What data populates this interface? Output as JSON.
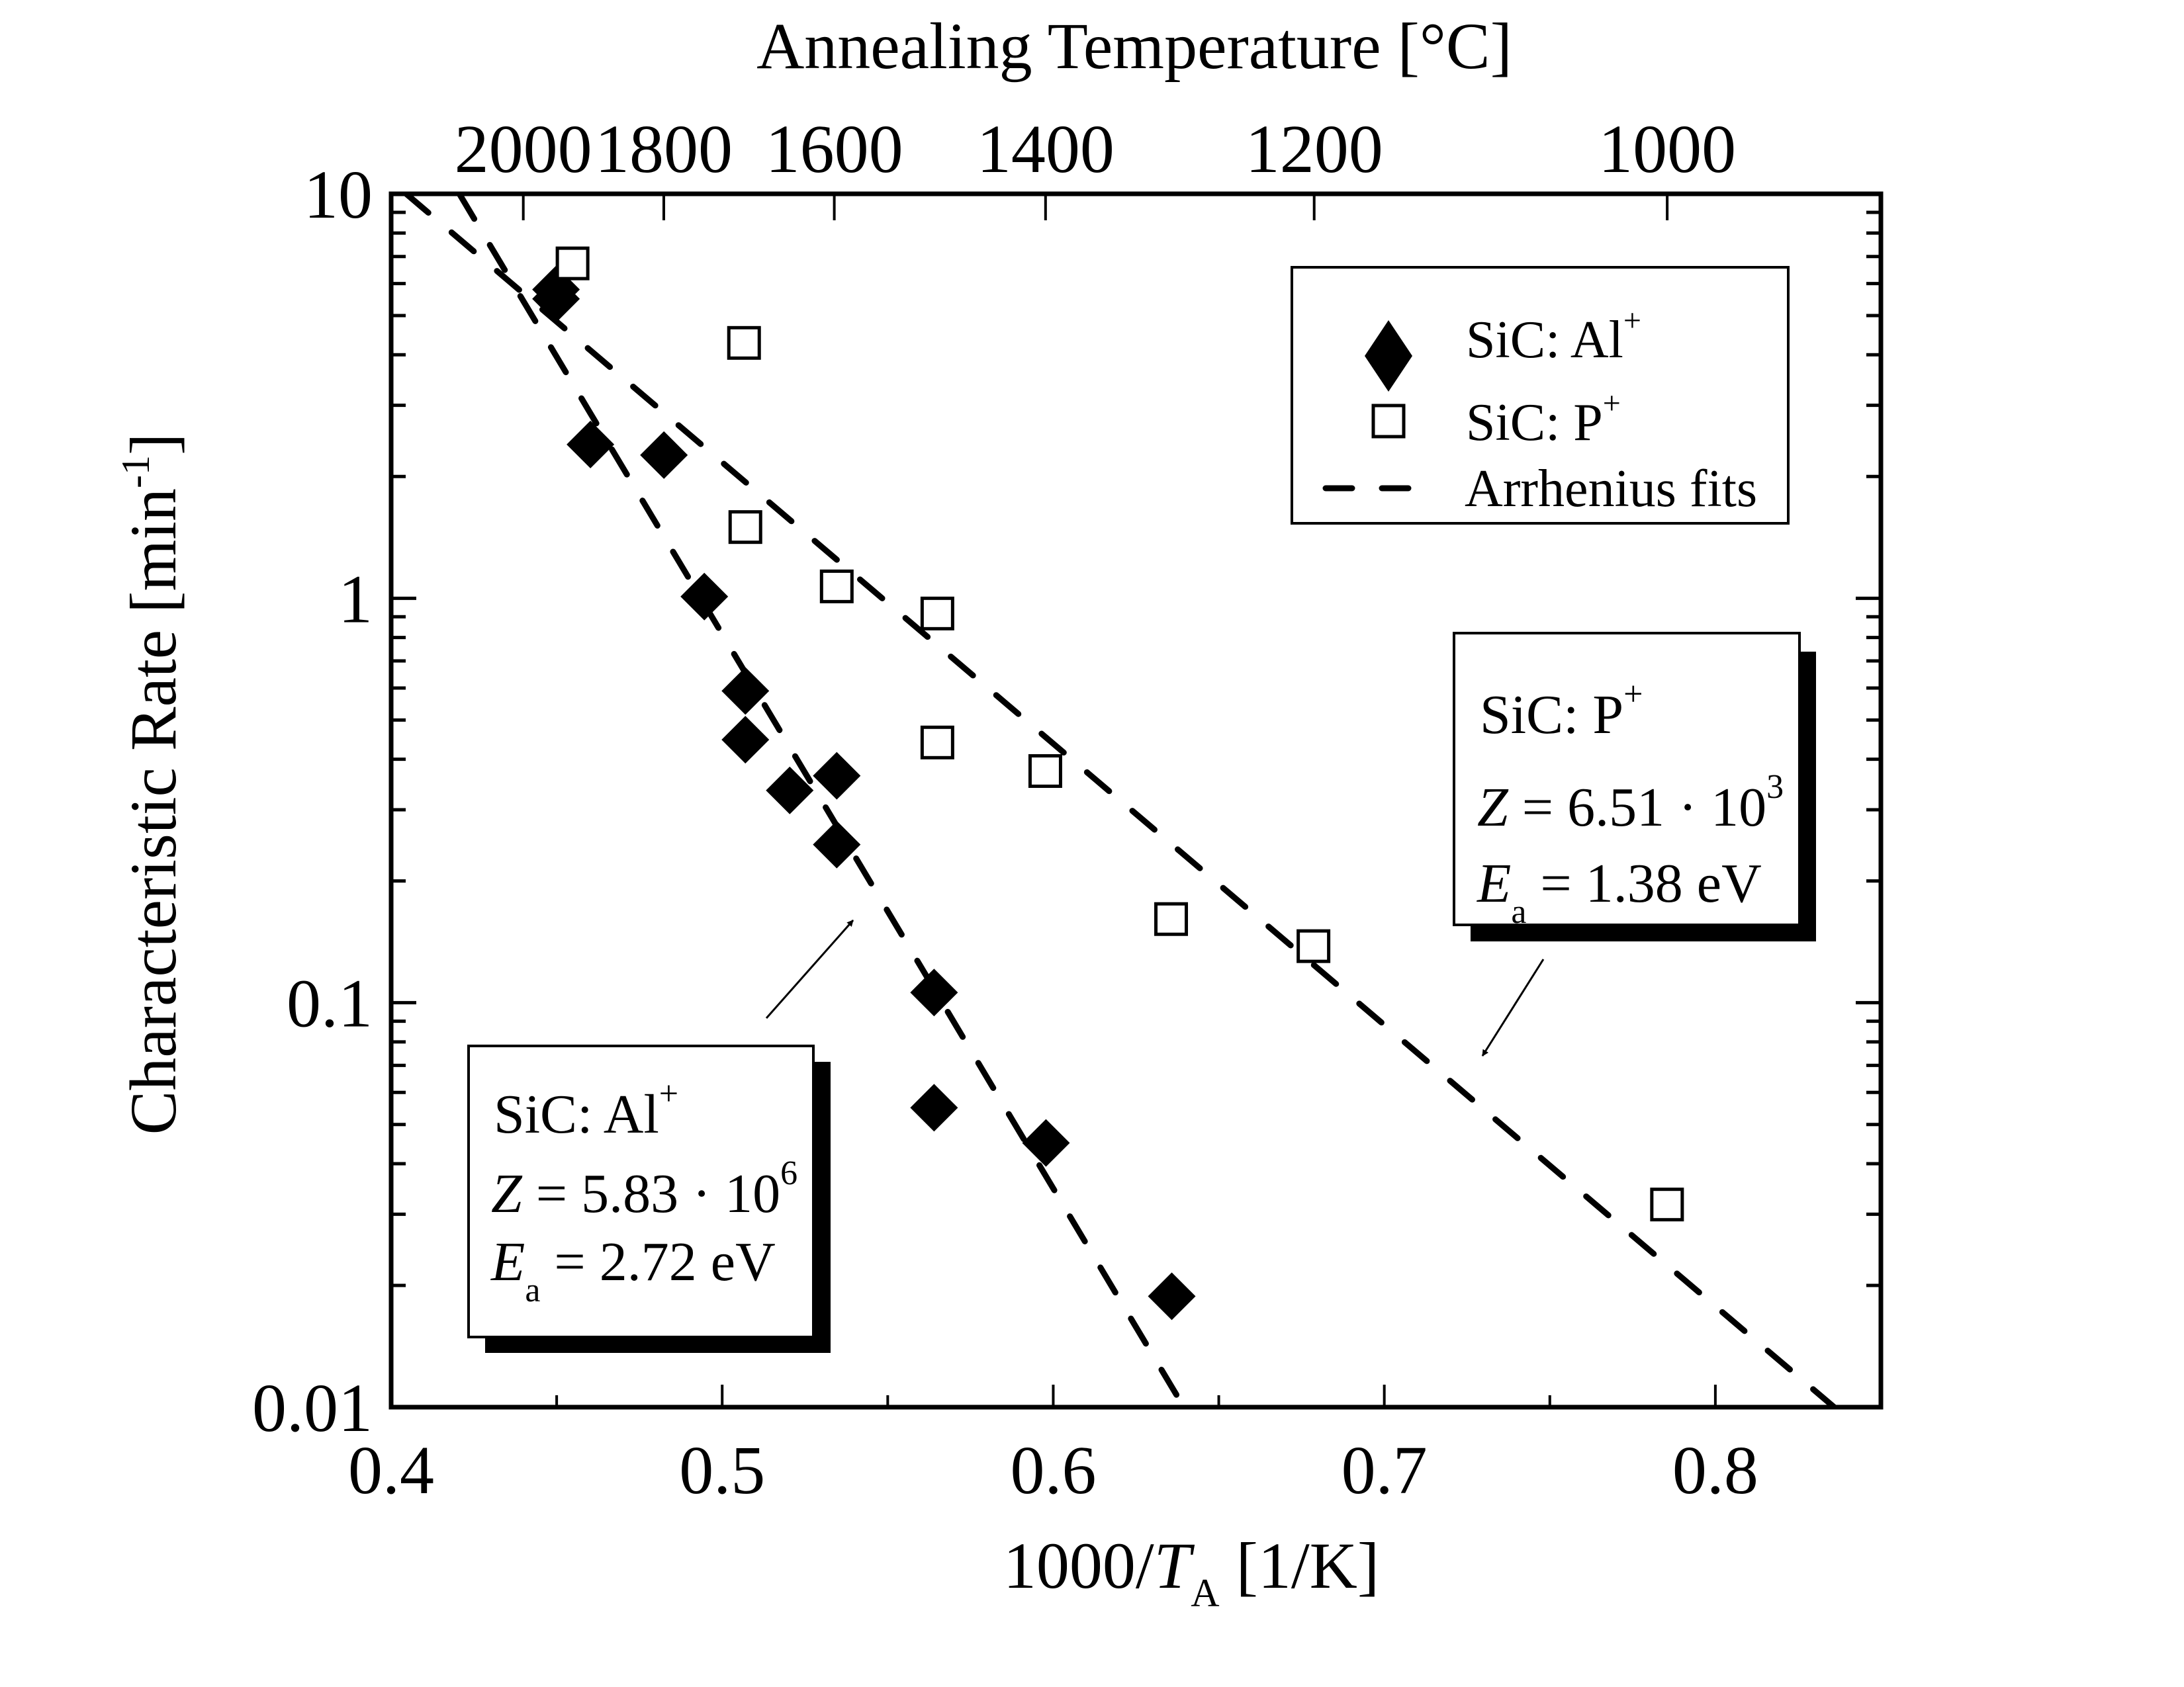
{
  "chart_data": {
    "type": "scatter",
    "title": "",
    "xlabel": {
      "main": "1000/",
      "italic": "T",
      "sub": "A",
      "unit": " [1/K]"
    },
    "ylabel": {
      "main": "Characteristic Rate [min",
      "sup": "-1",
      "close": "]"
    },
    "top_xlabel": "Annealing Temperature [°C]",
    "x_scale": "linear",
    "y_scale": "log",
    "xlim": [
      0.4,
      0.85
    ],
    "ylim": [
      0.01,
      10
    ],
    "x_ticks": [
      0.4,
      0.5,
      0.6,
      0.7,
      0.8
    ],
    "x_tick_labels": [
      "0.4",
      "0.5",
      "0.6",
      "0.7",
      "0.8"
    ],
    "x_minor_ticks": [
      0.45,
      0.55,
      0.65,
      0.75
    ],
    "y_ticks": [
      0.01,
      0.1,
      1,
      10
    ],
    "y_tick_labels": [
      "0.01",
      "0.1",
      "1",
      "10"
    ],
    "top_ticks_celsius": [
      2000,
      1800,
      1600,
      1400,
      1200,
      1000
    ],
    "top_tick_labels": [
      "2000",
      "1800",
      "1600",
      "1400",
      "1200",
      "1000"
    ],
    "grid": false,
    "legend_position": "top-right",
    "series": [
      {
        "name": "SiC: Al",
        "name_sup": "+",
        "marker": "filled-diamond",
        "color": "#000000",
        "x": [
          0.4498,
          0.4498,
          0.4602,
          0.4824,
          0.4946,
          0.507,
          0.507,
          0.5204,
          0.5346,
          0.5346,
          0.564,
          0.564,
          0.5978,
          0.6358
        ],
        "y": [
          5.8,
          5.5,
          2.4,
          2.26,
          1.01,
          0.59,
          0.447,
          0.335,
          0.364,
          0.246,
          0.106,
          0.055,
          0.045,
          0.0188
        ]
      },
      {
        "name": "SiC: P",
        "name_sup": "+",
        "marker": "open-square",
        "color": "#000000",
        "x": [
          0.4548,
          0.5066,
          0.507,
          0.5346,
          0.565,
          0.565,
          0.5976,
          0.6356,
          0.6786,
          0.7854
        ],
        "y": [
          6.73,
          4.28,
          1.5,
          1.07,
          0.917,
          0.44,
          0.374,
          0.161,
          0.138,
          0.0317
        ]
      }
    ],
    "fits": [
      {
        "name": "Arrhenius fit Al",
        "Z": 5830000,
        "Ea_eV": 2.72,
        "style": "dashed"
      },
      {
        "name": "Arrhenius fit P",
        "Z": 6510,
        "Ea_eV": 1.38,
        "style": "dashed"
      }
    ],
    "legend": [
      {
        "label": "SiC: Al",
        "sup": "+",
        "marker": "filled-diamond"
      },
      {
        "label": "SiC: P",
        "sup": "+",
        "marker": "open-square"
      },
      {
        "label": "Arrhenius fits",
        "sup": "",
        "marker": "dashed-line"
      }
    ],
    "annotations": [
      {
        "id": "al",
        "title": "SiC: Al",
        "title_sup": "+",
        "z_label": "Z",
        "z_value": " = 5.83 · 10",
        "z_exp": "6",
        "e_label": "E",
        "e_sub": "a",
        "e_value": " = 2.72 eV",
        "arrow_target": [
          0.5395,
          0.155
        ]
      },
      {
        "id": "p",
        "title": "SiC: P",
        "title_sup": "+",
        "z_label": "Z",
        "z_value": " = 6.51 · 10",
        "z_exp": "3",
        "e_label": "E",
        "e_sub": "a",
        "e_value": " = 1.38 eV",
        "arrow_target": [
          0.73,
          0.071
        ]
      }
    ]
  }
}
